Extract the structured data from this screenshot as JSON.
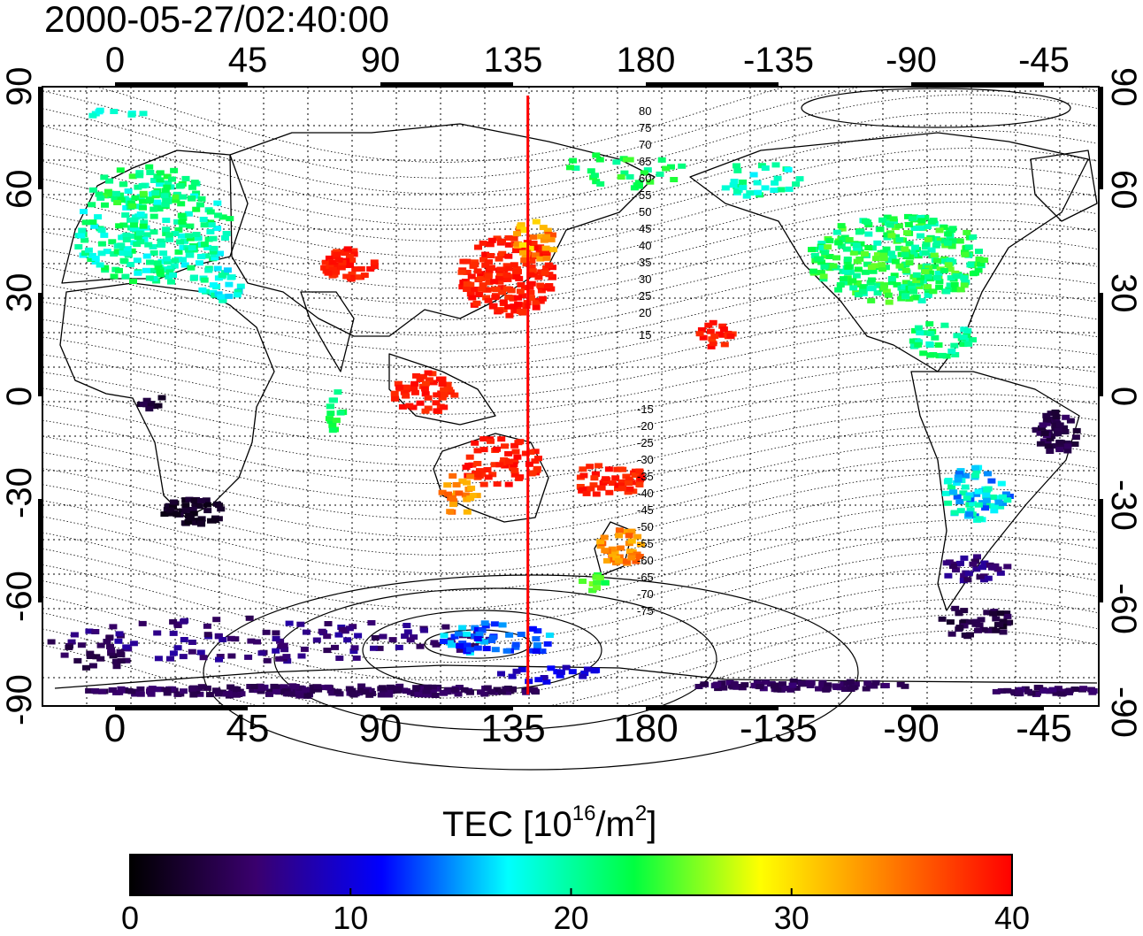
{
  "timestamp": "2000-05-27/02:40:00",
  "map": {
    "lon_ticks": [
      "0",
      "45",
      "90",
      "135",
      "180",
      "-135",
      "-90",
      "-45"
    ],
    "lat_ticks": [
      "90",
      "60",
      "30",
      "0",
      "-30",
      "-60",
      "-90"
    ],
    "meridian_line_longitude": 140,
    "meridian_line_color": "#ff0000",
    "contour_labels_north": [
      "80",
      "75",
      "70",
      "65",
      "60",
      "55",
      "50",
      "45",
      "40",
      "35",
      "30",
      "25",
      "20",
      "15"
    ],
    "contour_labels_south": [
      "-15",
      "-20",
      "-25",
      "-30",
      "-35",
      "-40",
      "-45",
      "-50",
      "-55",
      "-60",
      "-65",
      "-70",
      "-75"
    ]
  },
  "colorbar": {
    "title_prefix": "TEC  [10",
    "title_exp": "16",
    "title_mid": "/m",
    "title_exp2": "2",
    "title_suffix": "]",
    "ticks": [
      "0",
      "10",
      "20",
      "30",
      "40"
    ],
    "range": [
      0,
      40
    ],
    "colormap": [
      "#000000",
      "#3a006e",
      "#0000ff",
      "#00ffff",
      "#00ff40",
      "#ffff00",
      "#ff8000",
      "#ff0000"
    ]
  }
}
